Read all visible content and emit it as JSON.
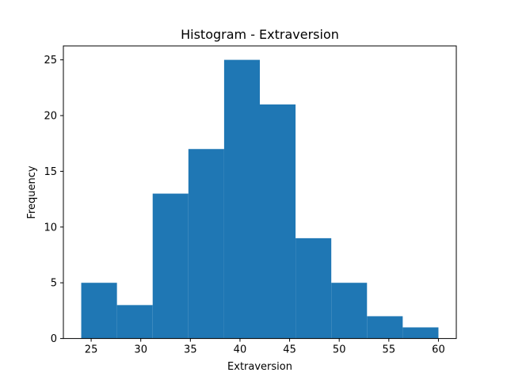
{
  "chart_data": {
    "type": "bar",
    "title": "Histogram - Extraversion",
    "xlabel": "Extraversion",
    "ylabel": "Frequency",
    "bin_edges": [
      24.0,
      27.6,
      31.2,
      34.8,
      38.4,
      42.0,
      45.6,
      49.2,
      52.8,
      56.4,
      60.0
    ],
    "values": [
      5,
      3,
      13,
      17,
      25,
      21,
      9,
      5,
      2,
      1
    ],
    "xlim": [
      22.2,
      61.8
    ],
    "ylim": [
      0,
      26.25
    ],
    "xticks": [
      25,
      30,
      35,
      40,
      45,
      50,
      55,
      60
    ],
    "yticks": [
      0,
      5,
      10,
      15,
      20,
      25
    ],
    "color": "#1f77b4",
    "grid": false,
    "legend": "none"
  }
}
